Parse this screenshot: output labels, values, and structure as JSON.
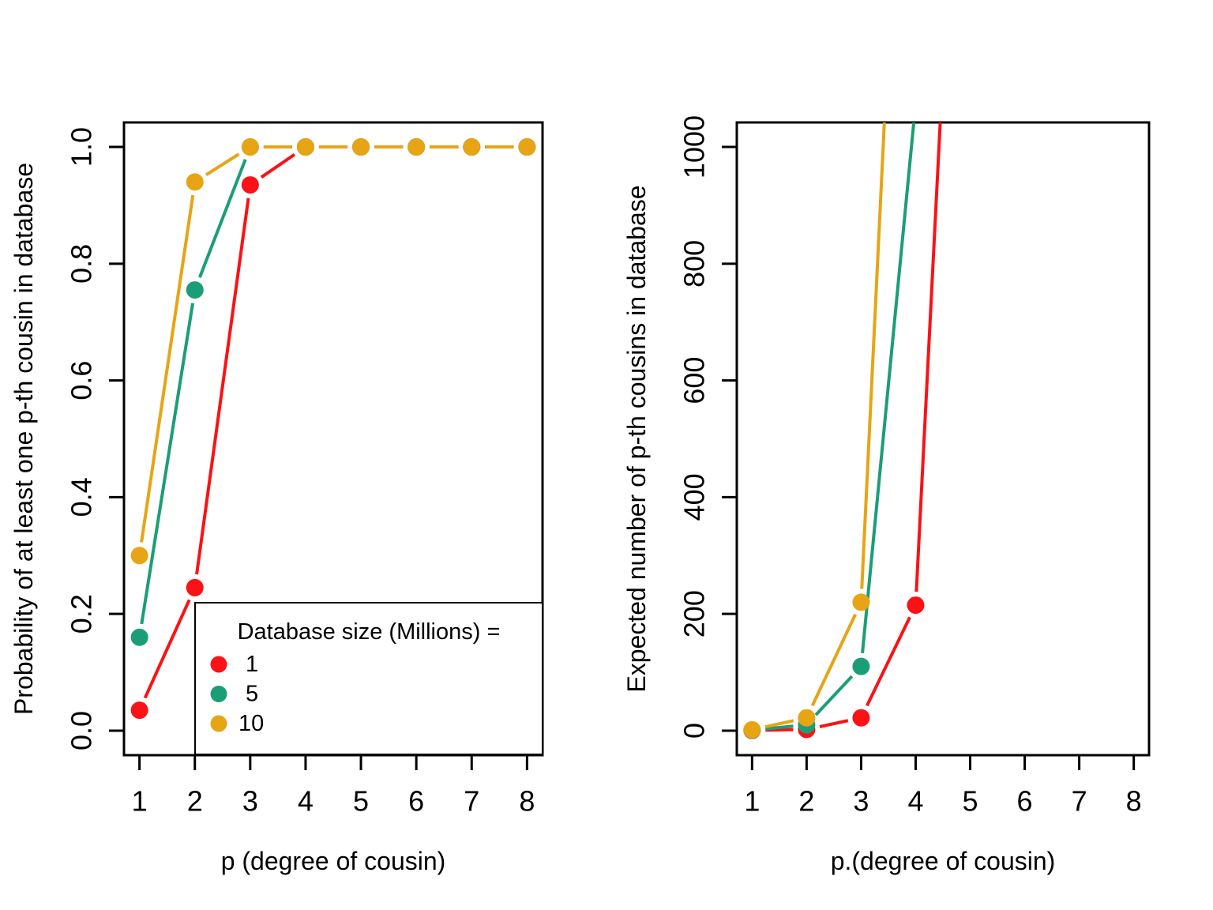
{
  "figure": {
    "background": "#ffffff",
    "description_left": "Probability of at least one p-th cousin in database vs p",
    "description_right": "Expected number of p-th cousins in database vs p"
  },
  "colors": {
    "red": "#fa1216",
    "teal": "#1b9e77",
    "orange": "#e7a414",
    "axis": "#000000",
    "background": "#ffffff"
  },
  "chart_data": [
    {
      "type": "line",
      "title": "",
      "xlabel": "p (degree of cousin)",
      "ylabel": "Probability of at least one p-th cousin in database",
      "x": [
        1,
        2,
        3,
        4,
        5,
        6,
        7,
        8
      ],
      "xticks": [
        "1",
        "2",
        "3",
        "4",
        "5",
        "6",
        "7",
        "8"
      ],
      "xtick_values": [
        1,
        2,
        3,
        4,
        5,
        6,
        7,
        8
      ],
      "yticks": [
        "0.0",
        "0.2",
        "0.4",
        "0.6",
        "0.8",
        "1.0"
      ],
      "ytick_values": [
        0,
        0.2,
        0.4,
        0.6,
        0.8,
        1.0
      ],
      "xlim": [
        0.72,
        8.28
      ],
      "ylim": [
        -0.042,
        1.042
      ],
      "grid": false,
      "marker": "filled-circle",
      "line_style": "type-b-points-and-segments",
      "series": [
        {
          "name": "1",
          "color": "red",
          "values": [
            0.035,
            0.245,
            0.935,
            1,
            1,
            1,
            1,
            1
          ]
        },
        {
          "name": "5",
          "color": "teal",
          "values": [
            0.16,
            0.755,
            1,
            1,
            1,
            1,
            1,
            1
          ]
        },
        {
          "name": "10",
          "color": "orange",
          "values": [
            0.3,
            0.94,
            1,
            1,
            1,
            1,
            1,
            1
          ]
        }
      ],
      "legend": {
        "title": "Database size (Millions) =",
        "position": "bottom-right",
        "items": [
          {
            "label": "1",
            "color": "red"
          },
          {
            "label": "5",
            "color": "teal"
          },
          {
            "label": "10",
            "color": "orange"
          }
        ]
      }
    },
    {
      "type": "line",
      "title": "",
      "xlabel": "p.(degree of cousin)",
      "ylabel": "Expected number of p-th cousins in database",
      "x": [
        1,
        2,
        3,
        4,
        5,
        6,
        7,
        8
      ],
      "xticks": [
        "1",
        "2",
        "3",
        "4",
        "5",
        "6",
        "7",
        "8"
      ],
      "xtick_values": [
        1,
        2,
        3,
        4,
        5,
        6,
        7,
        8
      ],
      "yticks": [
        "0",
        "200",
        "400",
        "600",
        "800",
        "1000"
      ],
      "ytick_values": [
        0,
        200,
        400,
        600,
        800,
        1000
      ],
      "xlim": [
        0.72,
        8.28
      ],
      "ylim": [
        -42,
        1042
      ],
      "grid": false,
      "marker": "filled-circle",
      "line_style": "type-b-points-and-segments",
      "series": [
        {
          "name": "1",
          "color": "red",
          "values": [
            0.4,
            2,
            22,
            215,
            2050
          ]
        },
        {
          "name": "5",
          "color": "teal",
          "values": [
            0.8,
            10,
            110,
            1075
          ]
        },
        {
          "name": "10",
          "color": "orange",
          "values": [
            1.5,
            22,
            220,
            2150
          ]
        }
      ]
    }
  ]
}
